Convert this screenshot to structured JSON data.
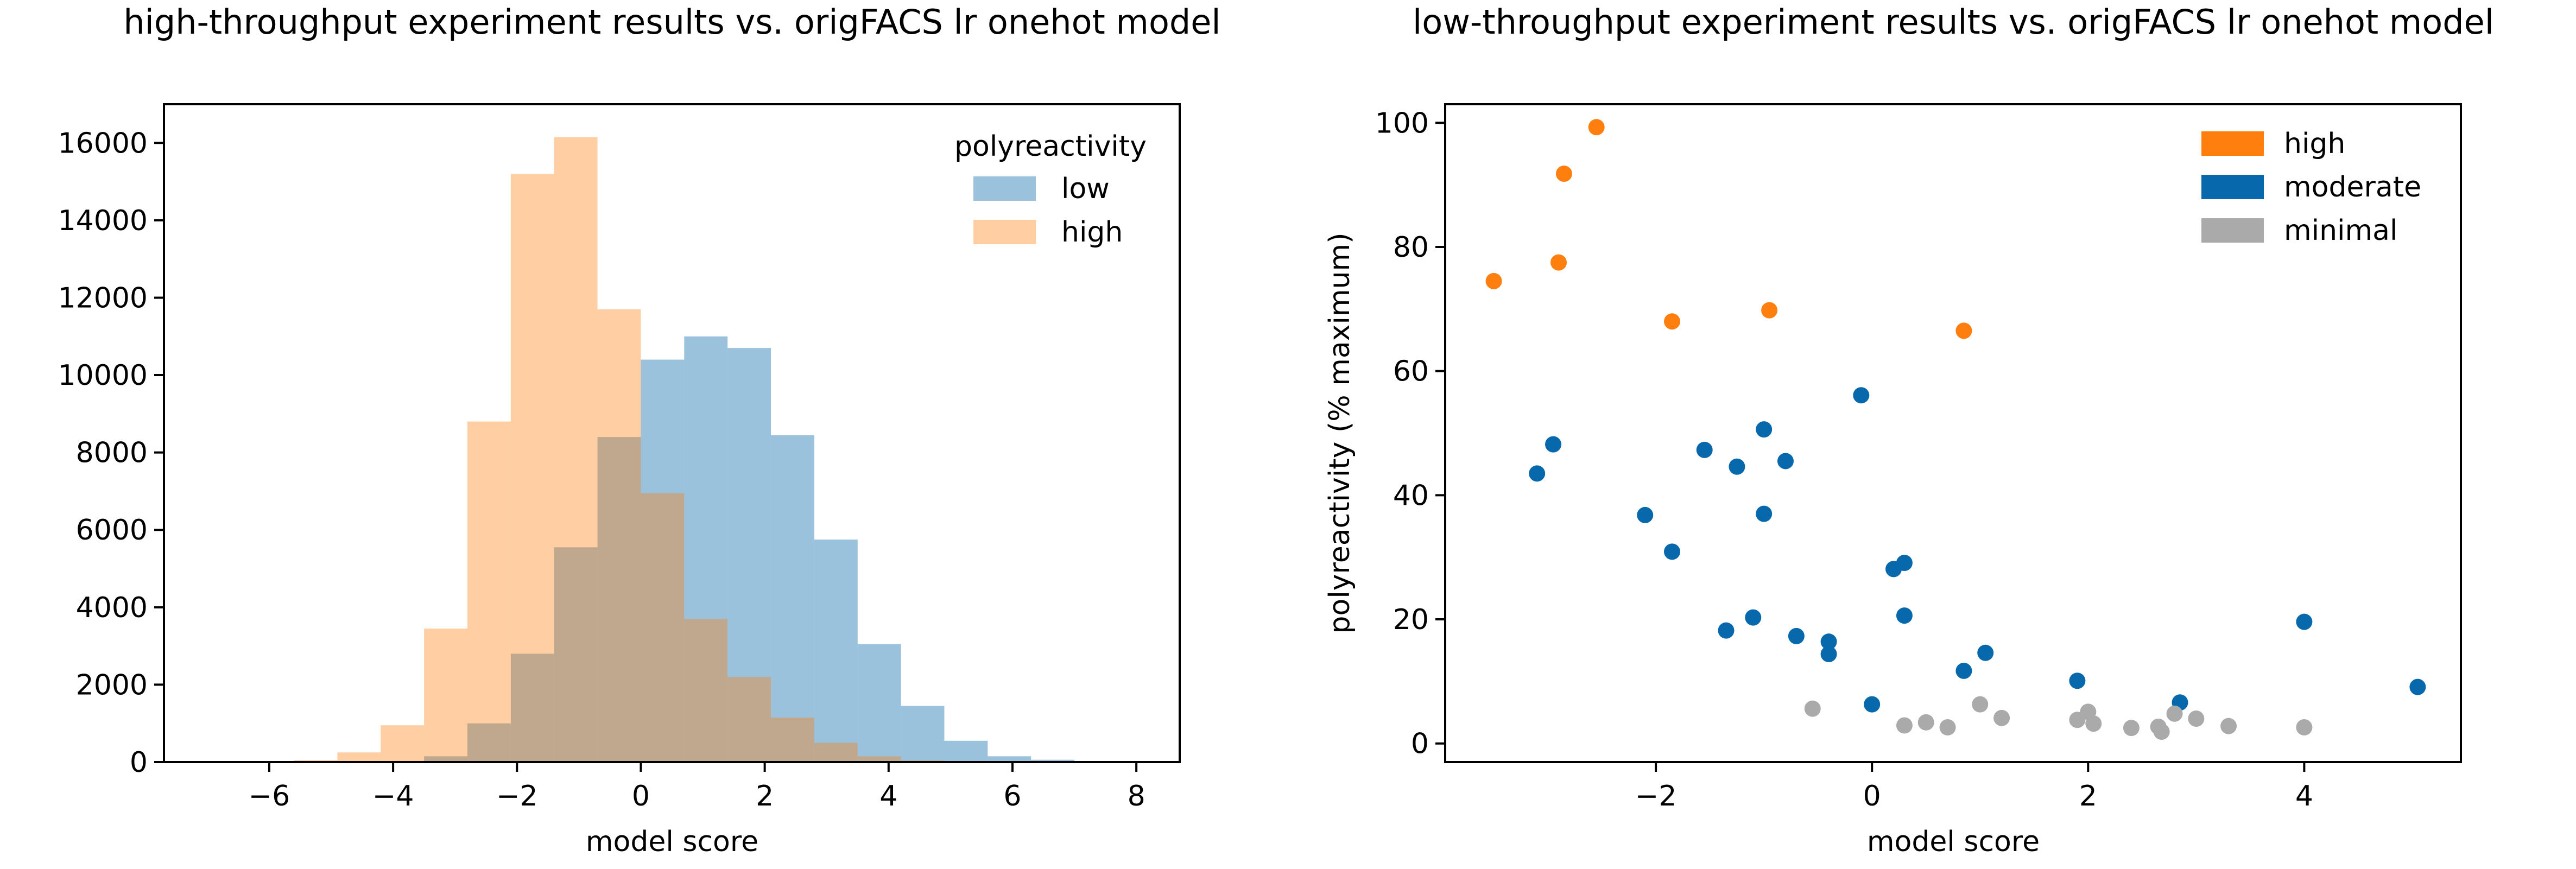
{
  "chart_data": [
    {
      "type": "histogram",
      "title": "high-throughput experiment results vs. origFACS lr onehot model",
      "xlabel": "model score",
      "ylabel": "",
      "xlim": [
        -7.7,
        8.7
      ],
      "ylim": [
        0,
        17000
      ],
      "xticks": [
        "−6",
        "−4",
        "−2",
        "0",
        "2",
        "4",
        "6",
        "8"
      ],
      "yticks": [
        "0",
        "2000",
        "4000",
        "6000",
        "8000",
        "10000",
        "12000",
        "14000",
        "16000"
      ],
      "grid": false,
      "legend": {
        "title": "polyreactivity",
        "placement": "upper right"
      },
      "series": [
        {
          "name": "low",
          "color": "#1f77b4",
          "opacity": 0.45,
          "bins": [
            [
              -3.5,
              -2.8,
              150
            ],
            [
              -2.8,
              -2.1,
              1000
            ],
            [
              -2.1,
              -1.4,
              2800
            ],
            [
              -1.4,
              -0.7,
              5550
            ],
            [
              -0.7,
              0.0,
              8400
            ],
            [
              0.0,
              0.7,
              10400
            ],
            [
              0.7,
              1.4,
              11000
            ],
            [
              1.4,
              2.1,
              10700
            ],
            [
              2.1,
              2.8,
              8450
            ],
            [
              2.8,
              3.5,
              5750
            ],
            [
              3.5,
              4.2,
              3050
            ],
            [
              4.2,
              4.9,
              1450
            ],
            [
              4.9,
              5.6,
              550
            ],
            [
              5.6,
              6.3,
              150
            ],
            [
              6.3,
              7.0,
              60
            ],
            [
              7.0,
              7.7,
              20
            ]
          ]
        },
        {
          "name": "high",
          "color": "#ff7f0e",
          "opacity": 0.38,
          "bins": [
            [
              -5.6,
              -4.9,
              50
            ],
            [
              -4.9,
              -4.2,
              250
            ],
            [
              -4.2,
              -3.5,
              950
            ],
            [
              -3.5,
              -2.8,
              3450
            ],
            [
              -2.8,
              -2.1,
              8800
            ],
            [
              -2.1,
              -1.4,
              15200
            ],
            [
              -1.4,
              -0.7,
              16150
            ],
            [
              -0.7,
              0.0,
              11700
            ],
            [
              0.0,
              0.7,
              6950
            ],
            [
              0.7,
              1.4,
              3700
            ],
            [
              1.4,
              2.1,
              2200
            ],
            [
              2.1,
              2.8,
              1150
            ],
            [
              2.8,
              3.5,
              500
            ],
            [
              3.5,
              4.2,
              150
            ],
            [
              4.2,
              4.9,
              40
            ]
          ]
        }
      ]
    },
    {
      "type": "scatter",
      "title": "low-throughput experiment results vs. origFACS lr onehot model",
      "xlabel": "model score",
      "ylabel": "polyreactivity (% maximum)",
      "xlim": [
        -3.95,
        5.45
      ],
      "ylim": [
        -3,
        103
      ],
      "xticks": [
        "−2",
        "0",
        "2",
        "4"
      ],
      "yticks": [
        "0",
        "20",
        "40",
        "60",
        "80",
        "100"
      ],
      "grid": false,
      "legend": {
        "title": "",
        "placement": "upper right"
      },
      "series": [
        {
          "name": "high",
          "color": "#ff7f0e",
          "points": [
            [
              -3.5,
              74.5
            ],
            [
              -2.55,
              99.3
            ],
            [
              -2.85,
              91.8
            ],
            [
              -2.9,
              77.5
            ],
            [
              -1.85,
              68
            ],
            [
              -0.95,
              69.8
            ],
            [
              0.85,
              66.5
            ]
          ]
        },
        {
          "name": "moderate",
          "color": "#0868ac",
          "points": [
            [
              -3.1,
              43.5
            ],
            [
              -2.95,
              48.2
            ],
            [
              -2.1,
              36.8
            ],
            [
              -1.85,
              30.9
            ],
            [
              -1.55,
              47.3
            ],
            [
              -1.25,
              44.6
            ],
            [
              -1.0,
              50.6
            ],
            [
              -0.8,
              45.5
            ],
            [
              -1.0,
              37.0
            ],
            [
              -0.1,
              56.1
            ],
            [
              -1.35,
              18.2
            ],
            [
              -1.1,
              20.3
            ],
            [
              -0.7,
              17.3
            ],
            [
              -0.4,
              16.4
            ],
            [
              -0.4,
              14.4
            ],
            [
              0.0,
              6.3
            ],
            [
              0.2,
              28.1
            ],
            [
              0.3,
              29.1
            ],
            [
              0.3,
              20.6
            ],
            [
              0.85,
              11.7
            ],
            [
              1.05,
              14.6
            ],
            [
              1.9,
              10.1
            ],
            [
              2.85,
              6.6
            ],
            [
              4.0,
              19.6
            ],
            [
              5.05,
              9.1
            ]
          ]
        },
        {
          "name": "minimal",
          "color": "#aaaaaa",
          "points": [
            [
              -0.55,
              5.6
            ],
            [
              0.3,
              2.9
            ],
            [
              0.5,
              3.4
            ],
            [
              0.7,
              2.6
            ],
            [
              1.0,
              6.3
            ],
            [
              1.2,
              4.1
            ],
            [
              1.9,
              3.8
            ],
            [
              2.0,
              5.1
            ],
            [
              2.05,
              3.2
            ],
            [
              2.4,
              2.5
            ],
            [
              2.65,
              2.7
            ],
            [
              2.68,
              1.9
            ],
            [
              2.8,
              4.8
            ],
            [
              3.0,
              4.0
            ],
            [
              3.3,
              2.8
            ],
            [
              4.0,
              2.6
            ]
          ]
        }
      ]
    }
  ]
}
